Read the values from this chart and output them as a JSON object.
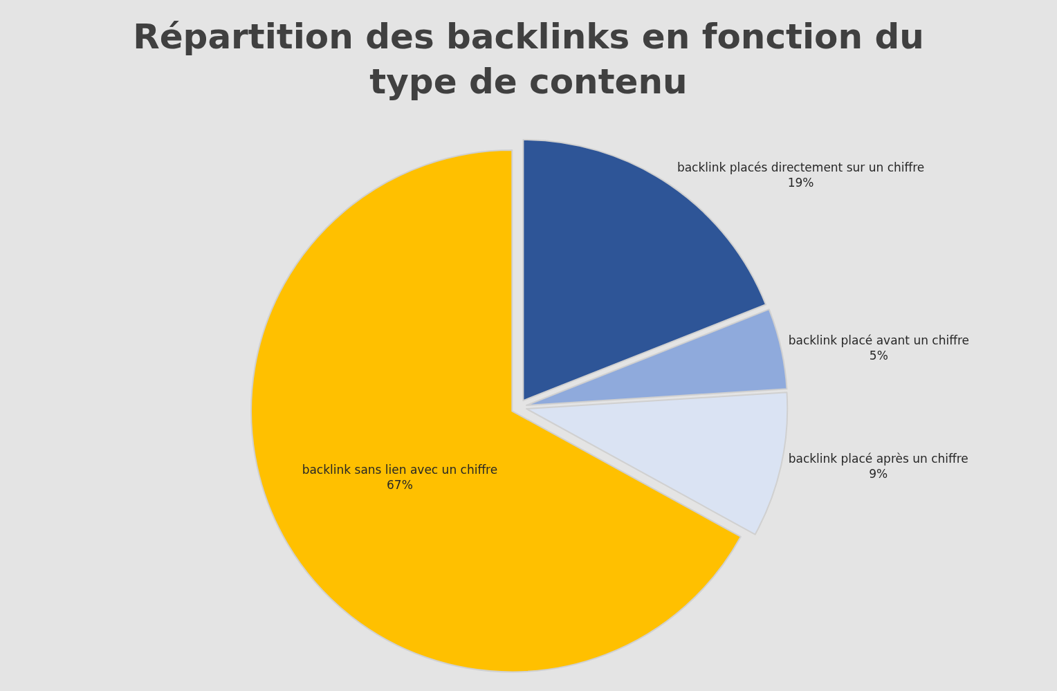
{
  "chart_data": {
    "type": "pie",
    "title": "Répartition des backlinks en fonction du type de contenu",
    "categories": [
      "backlink placés directement sur un chiffre",
      "backlink placé avant un chiffre",
      "backlink placé après un chiffre",
      "backlink sans lien avec un chiffre"
    ],
    "values": [
      19,
      5,
      9,
      67
    ],
    "colors": [
      "#2e5597",
      "#8faadc",
      "#dae3f3",
      "#ffc000"
    ],
    "value_labels": [
      "19%",
      "5%",
      "9%",
      "67%"
    ],
    "legend": false
  }
}
